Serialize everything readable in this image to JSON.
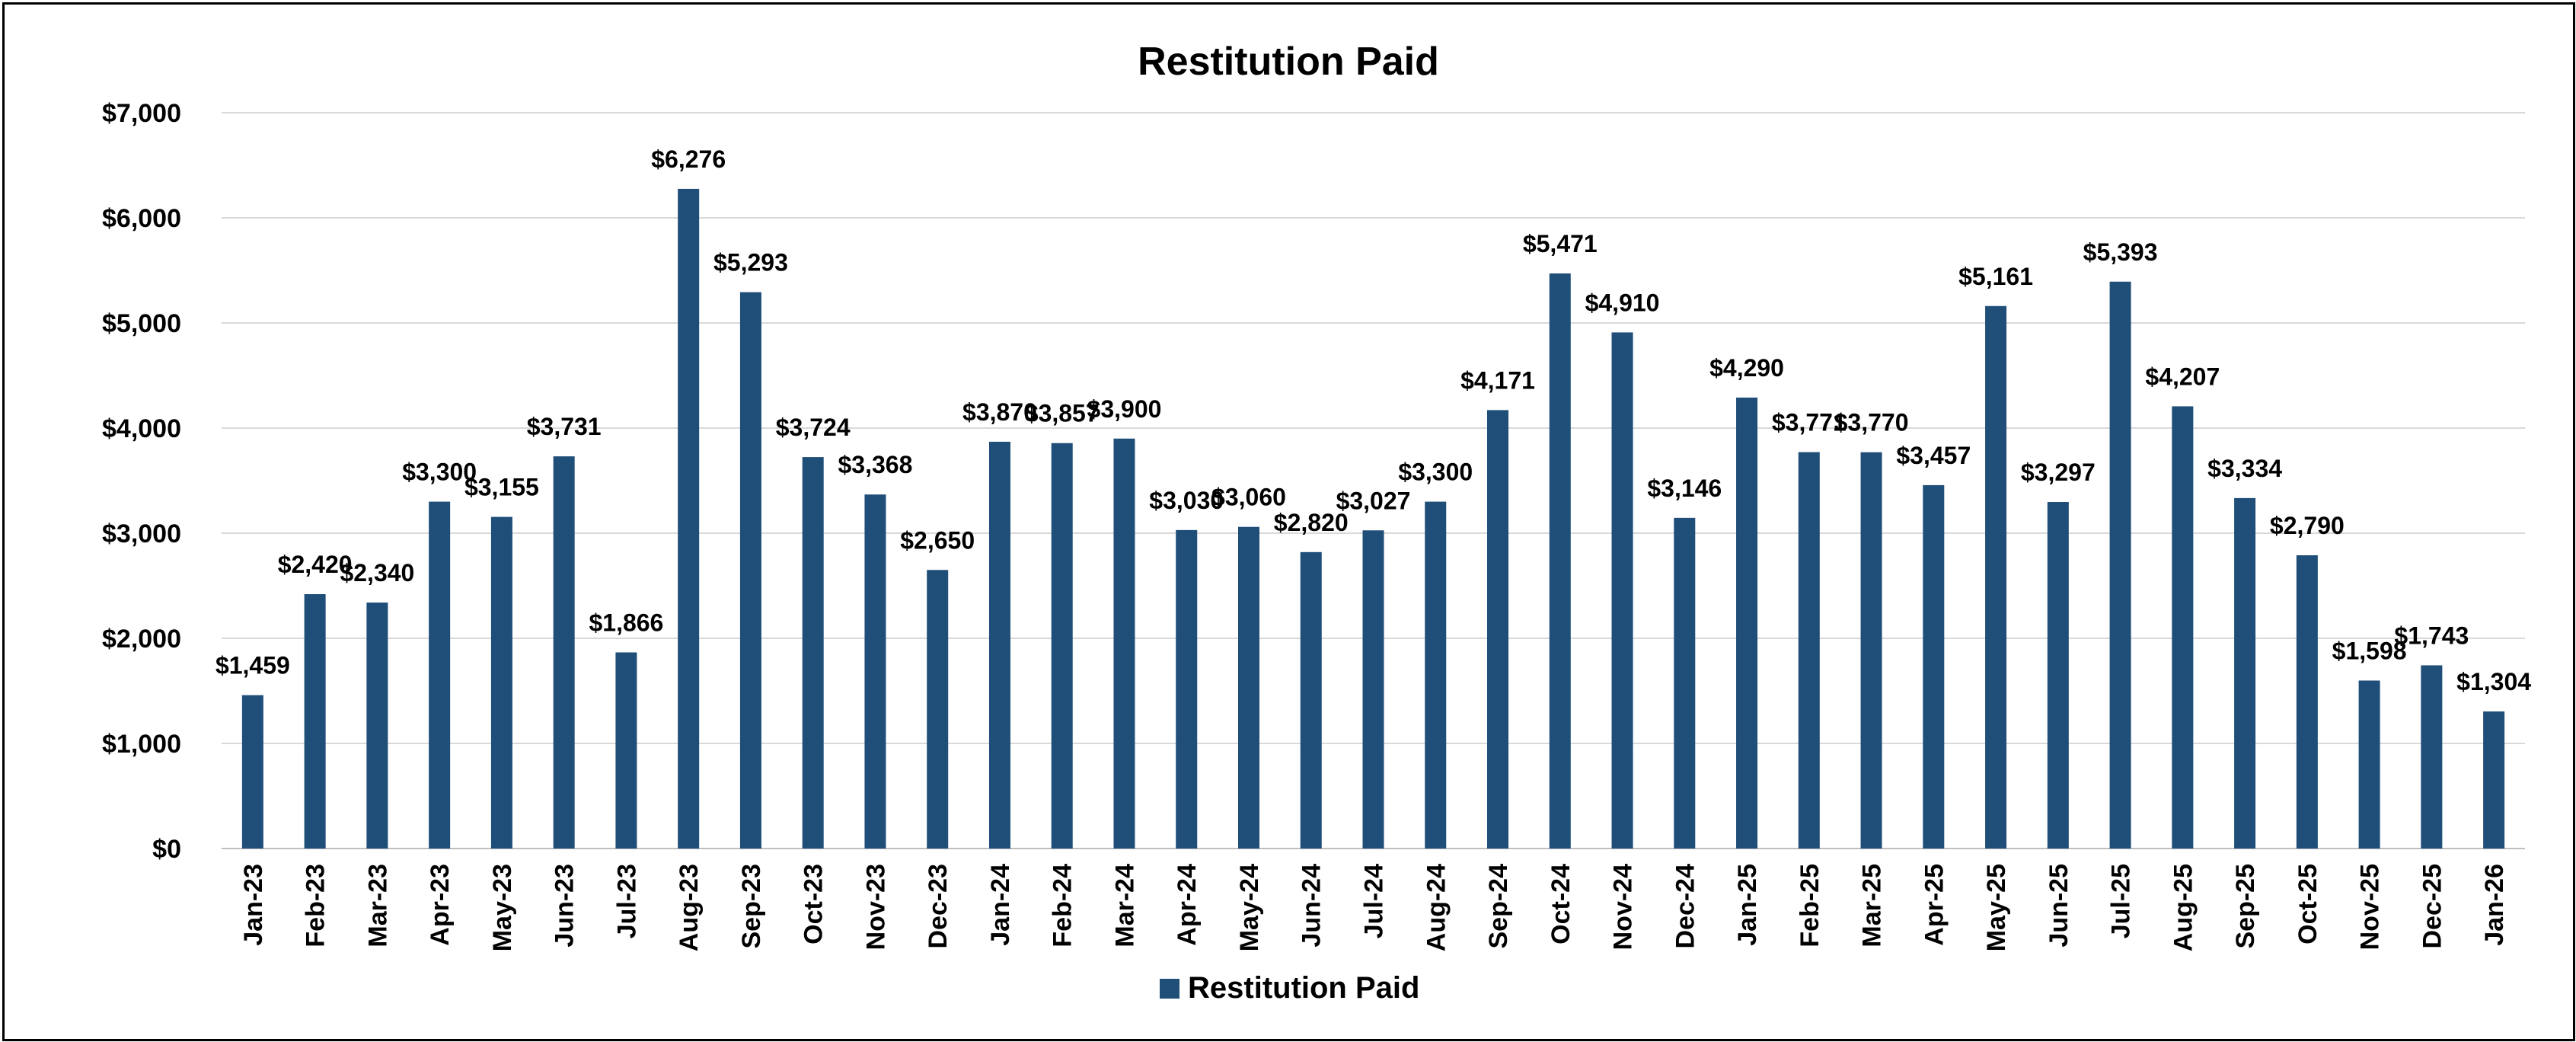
{
  "chart_data": {
    "type": "bar",
    "title": "Restitution Paid",
    "xlabel": "",
    "ylabel": "",
    "ylim": [
      0,
      7000
    ],
    "y_ticks": [
      "$0",
      "$1,000",
      "$2,000",
      "$3,000",
      "$4,000",
      "$5,000",
      "$6,000",
      "$7,000"
    ],
    "grid": true,
    "legend_position": "bottom",
    "bar_color": "#1F4E79",
    "categories": [
      "Jan-23",
      "Feb-23",
      "Mar-23",
      "Apr-23",
      "May-23",
      "Jun-23",
      "Jul-23",
      "Aug-23",
      "Sep-23",
      "Oct-23",
      "Nov-23",
      "Dec-23",
      "Jan-24",
      "Feb-24",
      "Mar-24",
      "Apr-24",
      "May-24",
      "Jun-24",
      "Jul-24",
      "Aug-24",
      "Sep-24",
      "Oct-24",
      "Nov-24",
      "Dec-24",
      "Jan-25",
      "Feb-25",
      "Mar-25",
      "Apr-25",
      "May-25",
      "Jun-25",
      "Jul-25",
      "Aug-25",
      "Sep-25",
      "Oct-25",
      "Nov-25",
      "Dec-25",
      "Jan-26"
    ],
    "series": [
      {
        "name": "Restitution Paid",
        "values": [
          1459,
          2420,
          2340,
          3300,
          3155,
          3731,
          1866,
          6276,
          5293,
          3724,
          3368,
          2650,
          3870,
          3857,
          3900,
          3030,
          3060,
          2820,
          3027,
          3300,
          4171,
          5471,
          4910,
          3146,
          4290,
          3771,
          3770,
          3457,
          5161,
          3297,
          5393,
          4207,
          3334,
          2790,
          1598,
          1743,
          1304
        ],
        "data_labels": [
          "$1,459",
          "$2,420",
          "$2,340",
          "$3,300",
          "$3,155",
          "$3,731",
          "$1,866",
          "$6,276",
          "$5,293",
          "$3,724",
          "$3,368",
          "$2,650",
          "$3,870",
          "$3,857",
          "$3,900",
          "$3,030",
          "$3,060",
          "$2,820",
          "$3,027",
          "$3,300",
          "$4,171",
          "$5,471",
          "$4,910",
          "$3,146",
          "$4,290",
          "$3,771",
          "$3,770",
          "$3,457",
          "$5,161",
          "$3,297",
          "$5,393",
          "$4,207",
          "$3,334",
          "$2,790",
          "$1,598",
          "$1,743",
          "$1,304"
        ]
      }
    ]
  }
}
